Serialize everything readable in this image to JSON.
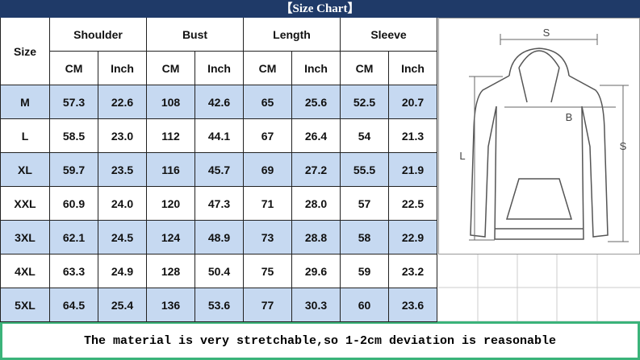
{
  "title": "【Size Chart】",
  "table": {
    "size_header": "Size",
    "groups": [
      "Shoulder",
      "Bust",
      "Length",
      "Sleeve"
    ],
    "subheaders": [
      "CM",
      "Inch",
      "CM",
      "Inch",
      "CM",
      "Inch",
      "CM",
      "Inch"
    ],
    "rows": [
      [
        "M",
        "57.3",
        "22.6",
        "108",
        "42.6",
        "65",
        "25.6",
        "52.5",
        "20.7"
      ],
      [
        "L",
        "58.5",
        "23.0",
        "112",
        "44.1",
        "67",
        "26.4",
        "54",
        "21.3"
      ],
      [
        "XL",
        "59.7",
        "23.5",
        "116",
        "45.7",
        "69",
        "27.2",
        "55.5",
        "21.9"
      ],
      [
        "XXL",
        "60.9",
        "24.0",
        "120",
        "47.3",
        "71",
        "28.0",
        "57",
        "22.5"
      ],
      [
        "3XL",
        "62.1",
        "24.5",
        "124",
        "48.9",
        "73",
        "28.8",
        "58",
        "22.9"
      ],
      [
        "4XL",
        "63.3",
        "24.9",
        "128",
        "50.4",
        "75",
        "29.6",
        "59",
        "23.2"
      ],
      [
        "5XL",
        "64.5",
        "25.4",
        "136",
        "53.6",
        "77",
        "30.3",
        "60",
        "23.6"
      ]
    ]
  },
  "diagram": {
    "width_label": "S",
    "bust_label": "B",
    "length_label": "L",
    "sleeve_label": "S"
  },
  "footer": "The material is very stretchable,so 1-2cm deviation is reasonable"
}
